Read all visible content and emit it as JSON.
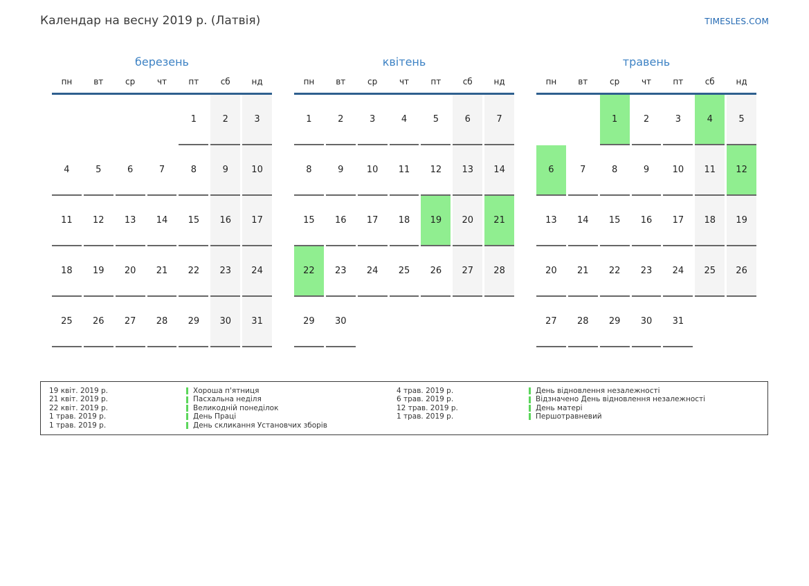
{
  "page": {
    "title": "Календар на весну 2019 р. (Латвія)",
    "site": "TIMESLES.COM"
  },
  "calendar": {
    "weekdays": [
      "пн",
      "вт",
      "ср",
      "чт",
      "пт",
      "сб",
      "нд"
    ],
    "months": [
      {
        "name": "березень",
        "holidays": [],
        "weeks": [
          [
            null,
            null,
            null,
            null,
            1,
            2,
            3
          ],
          [
            4,
            5,
            6,
            7,
            8,
            9,
            10
          ],
          [
            11,
            12,
            13,
            14,
            15,
            16,
            17
          ],
          [
            18,
            19,
            20,
            21,
            22,
            23,
            24
          ],
          [
            25,
            26,
            27,
            28,
            29,
            30,
            31
          ]
        ]
      },
      {
        "name": "квітень",
        "holidays": [
          19,
          21,
          22
        ],
        "weeks": [
          [
            1,
            2,
            3,
            4,
            5,
            6,
            7
          ],
          [
            8,
            9,
            10,
            11,
            12,
            13,
            14
          ],
          [
            15,
            16,
            17,
            18,
            19,
            20,
            21
          ],
          [
            22,
            23,
            24,
            25,
            26,
            27,
            28
          ],
          [
            29,
            30,
            null,
            null,
            null,
            null,
            null
          ]
        ]
      },
      {
        "name": "травень",
        "holidays": [
          1,
          4,
          6,
          12
        ],
        "weeks": [
          [
            null,
            null,
            1,
            2,
            3,
            4,
            5
          ],
          [
            6,
            7,
            8,
            9,
            10,
            11,
            12
          ],
          [
            13,
            14,
            15,
            16,
            17,
            18,
            19
          ],
          [
            20,
            21,
            22,
            23,
            24,
            25,
            26
          ],
          [
            27,
            28,
            29,
            30,
            31,
            null,
            null
          ]
        ]
      }
    ]
  },
  "legend": {
    "columns": [
      {
        "items": [
          {
            "date": "19 квіт. 2019 р.",
            "name": "Хороша п'ятниця"
          },
          {
            "date": "21 квіт. 2019 р.",
            "name": "Пасхальна неділя"
          },
          {
            "date": "22 квіт. 2019 р.",
            "name": "Великодній понеділок"
          },
          {
            "date": "1 трав. 2019 р.",
            "name": "День Праці"
          },
          {
            "date": "1 трав. 2019 р.",
            "name": "День скликання Установчих зборів"
          }
        ]
      },
      {
        "items": [
          {
            "date": "4 трав. 2019 р.",
            "name": "День відновлення незалежності"
          },
          {
            "date": "6 трав. 2019 р.",
            "name": "Відзначено День відновлення незалежності"
          },
          {
            "date": "12 трав. 2019 р.",
            "name": "День матері"
          },
          {
            "date": "1 трав. 2019 р.",
            "name": "Першотравневий"
          }
        ]
      }
    ]
  },
  "colors": {
    "month_title": "#3d82c4",
    "site_link": "#2268b2",
    "header_line": "#2e5f8e",
    "holiday_green": "#90ee90",
    "weekend_gray": "#f4f4f4",
    "day_underline": "#666666",
    "legend_marker_green": "#5cd65c",
    "legend_border": "#3a3a3a"
  }
}
